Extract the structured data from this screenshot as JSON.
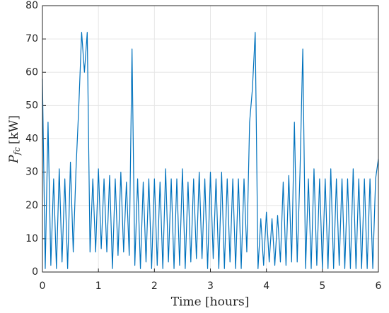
{
  "chart_data": {
    "type": "line",
    "xlabel": "Time [hours]",
    "ylabel": {
      "symbol": "P",
      "subscript": "fc",
      "unit": "[kW]"
    },
    "x": [
      0,
      0.05,
      0.1,
      0.15,
      0.2,
      0.25,
      0.3,
      0.35,
      0.4,
      0.45,
      0.5,
      0.55,
      0.6,
      0.65,
      0.7,
      0.75,
      0.8,
      0.85,
      0.9,
      0.95,
      1,
      1.05,
      1.1,
      1.15,
      1.2,
      1.25,
      1.3,
      1.35,
      1.4,
      1.45,
      1.5,
      1.55,
      1.6,
      1.65,
      1.7,
      1.75,
      1.8,
      1.85,
      1.9,
      1.95,
      2,
      2.05,
      2.1,
      2.15,
      2.2,
      2.25,
      2.3,
      2.35,
      2.4,
      2.45,
      2.5,
      2.55,
      2.6,
      2.65,
      2.7,
      2.75,
      2.8,
      2.85,
      2.9,
      2.95,
      3,
      3.05,
      3.1,
      3.15,
      3.2,
      3.25,
      3.3,
      3.35,
      3.4,
      3.45,
      3.5,
      3.55,
      3.6,
      3.65,
      3.7,
      3.75,
      3.8,
      3.85,
      3.9,
      3.95,
      4,
      4.05,
      4.1,
      4.15,
      4.2,
      4.25,
      4.3,
      4.35,
      4.4,
      4.45,
      4.5,
      4.55,
      4.6,
      4.65,
      4.7,
      4.75,
      4.8,
      4.85,
      4.9,
      4.95,
      5,
      5.05,
      5.1,
      5.15,
      5.2,
      5.25,
      5.3,
      5.35,
      5.4,
      5.45,
      5.5,
      5.55,
      5.6,
      5.65,
      5.7,
      5.75,
      5.8,
      5.85,
      5.9,
      5.95,
      6
    ],
    "series": [
      {
        "name": "P_fc",
        "color": "#0072bd",
        "values": [
          58,
          1,
          45,
          2,
          28,
          1,
          31,
          3,
          28,
          1,
          33,
          6,
          31,
          50,
          72,
          60,
          72,
          6,
          28,
          6,
          31,
          7,
          28,
          6,
          29,
          1,
          28,
          5,
          30,
          6,
          27,
          5,
          67,
          2,
          28,
          1,
          27,
          3,
          28,
          1,
          28,
          2,
          27,
          1,
          31,
          3,
          28,
          1,
          28,
          2,
          31,
          1,
          27,
          3,
          28,
          4,
          30,
          4,
          28,
          1,
          30,
          4,
          28,
          1,
          30,
          1,
          28,
          3,
          28,
          1,
          28,
          1,
          28,
          6,
          45,
          55,
          72,
          1,
          16,
          2,
          18,
          3,
          16,
          2,
          17,
          3,
          27,
          2,
          29,
          3,
          45,
          3,
          30,
          67,
          1,
          28,
          1,
          31,
          2,
          28,
          1,
          28,
          1,
          31,
          1,
          28,
          2,
          28,
          1,
          28,
          1,
          31,
          1,
          28,
          1,
          28,
          1,
          28,
          1,
          28,
          34
        ]
      }
    ],
    "xlim": [
      0,
      6
    ],
    "xticks": [
      0,
      1,
      2,
      3,
      4,
      5,
      6
    ],
    "ylim": [
      0,
      80
    ],
    "yticks": [
      0,
      10,
      20,
      30,
      40,
      50,
      60,
      70,
      80
    ],
    "grid": true
  }
}
